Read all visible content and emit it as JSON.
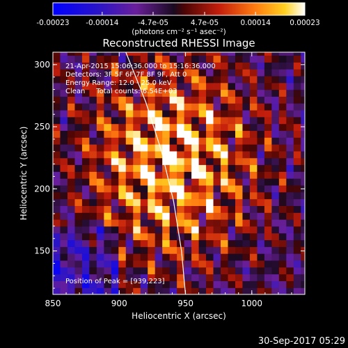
{
  "chart_data": {
    "type": "heatmap",
    "title": "Reconstructed RHESSI Image",
    "xlabel": "Heliocentric X (arcsec)",
    "ylabel": "Heliocentric Y (arcsec)",
    "xlim": [
      850,
      1040
    ],
    "ylim": [
      115,
      310
    ],
    "x_ticks": [
      850,
      900,
      950,
      1000
    ],
    "y_ticks": [
      150,
      200,
      250,
      300
    ],
    "x_tick_labels": [
      "850",
      "900",
      "950",
      "1000"
    ],
    "y_tick_labels": [
      "150",
      "200",
      "250",
      "300"
    ],
    "colorbar": {
      "ticks": [
        -0.00023,
        -0.00014,
        -4.7e-05,
        4.7e-05,
        0.00014,
        0.00023
      ],
      "tick_labels": [
        "-0.00023",
        "-0.00014",
        "-4.7e-05",
        "4.7e-05",
        "0.00014",
        "0.00023"
      ],
      "unit_label": "(photons cm⁻² s⁻¹ asec⁻²)",
      "range": [
        -0.00023,
        0.00023
      ],
      "colormap": "blue-purple-red-yellow-white"
    },
    "annotations": [
      "21-Apr-2015 15:06:36.000 to 15:16:36.000",
      "Detectors: 3F 5F 6F 7F 8F 9F, Att 0",
      "Energy Range: 12.0 - 25.0 keV",
      "Clean     Total counts: 6.54E+03"
    ],
    "peak_label": "Position of Peak = [939,223]",
    "peak": [
      939,
      223
    ],
    "limb_curve": [
      [
        905,
        310
      ],
      [
        920,
        270
      ],
      [
        932,
        230
      ],
      [
        941,
        190
      ],
      [
        947,
        150
      ],
      [
        950,
        115
      ]
    ]
  },
  "footer": {
    "date_stamp": "30-Sep-2017 05:29"
  }
}
